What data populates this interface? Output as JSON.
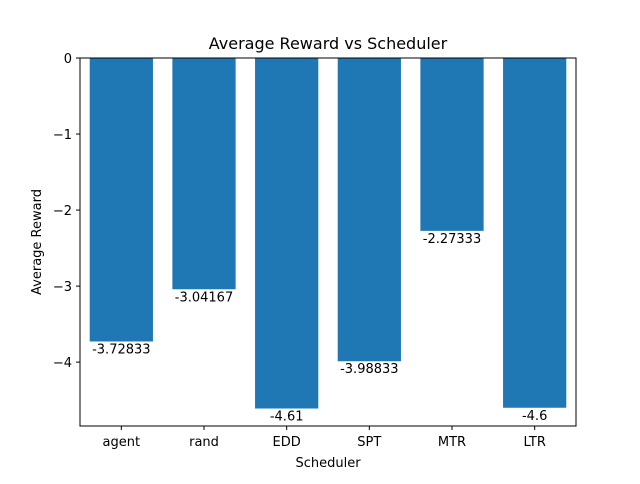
{
  "chart_data": {
    "type": "bar",
    "title": "Average Reward vs Scheduler",
    "xlabel": "Scheduler",
    "ylabel": "Average Reward",
    "categories": [
      "agent",
      "rand",
      "EDD",
      "SPT",
      "MTR",
      "LTR"
    ],
    "values": [
      -3.72833,
      -3.04167,
      -4.61,
      -3.98833,
      -2.27333,
      -4.6
    ],
    "data_labels": [
      "-3.72833",
      "-3.04167",
      "-4.61",
      "-3.98833",
      "-2.27333",
      "-4.6"
    ],
    "yticks": [
      0,
      -1,
      -2,
      -3,
      -4
    ],
    "ytick_labels": [
      "0",
      "−1",
      "−2",
      "−3",
      "−4"
    ],
    "ylim": [
      -4.84,
      0
    ],
    "grid": false,
    "colors": {
      "bar": "#1f77b4",
      "axes": "#000000",
      "background": "#ffffff"
    }
  }
}
